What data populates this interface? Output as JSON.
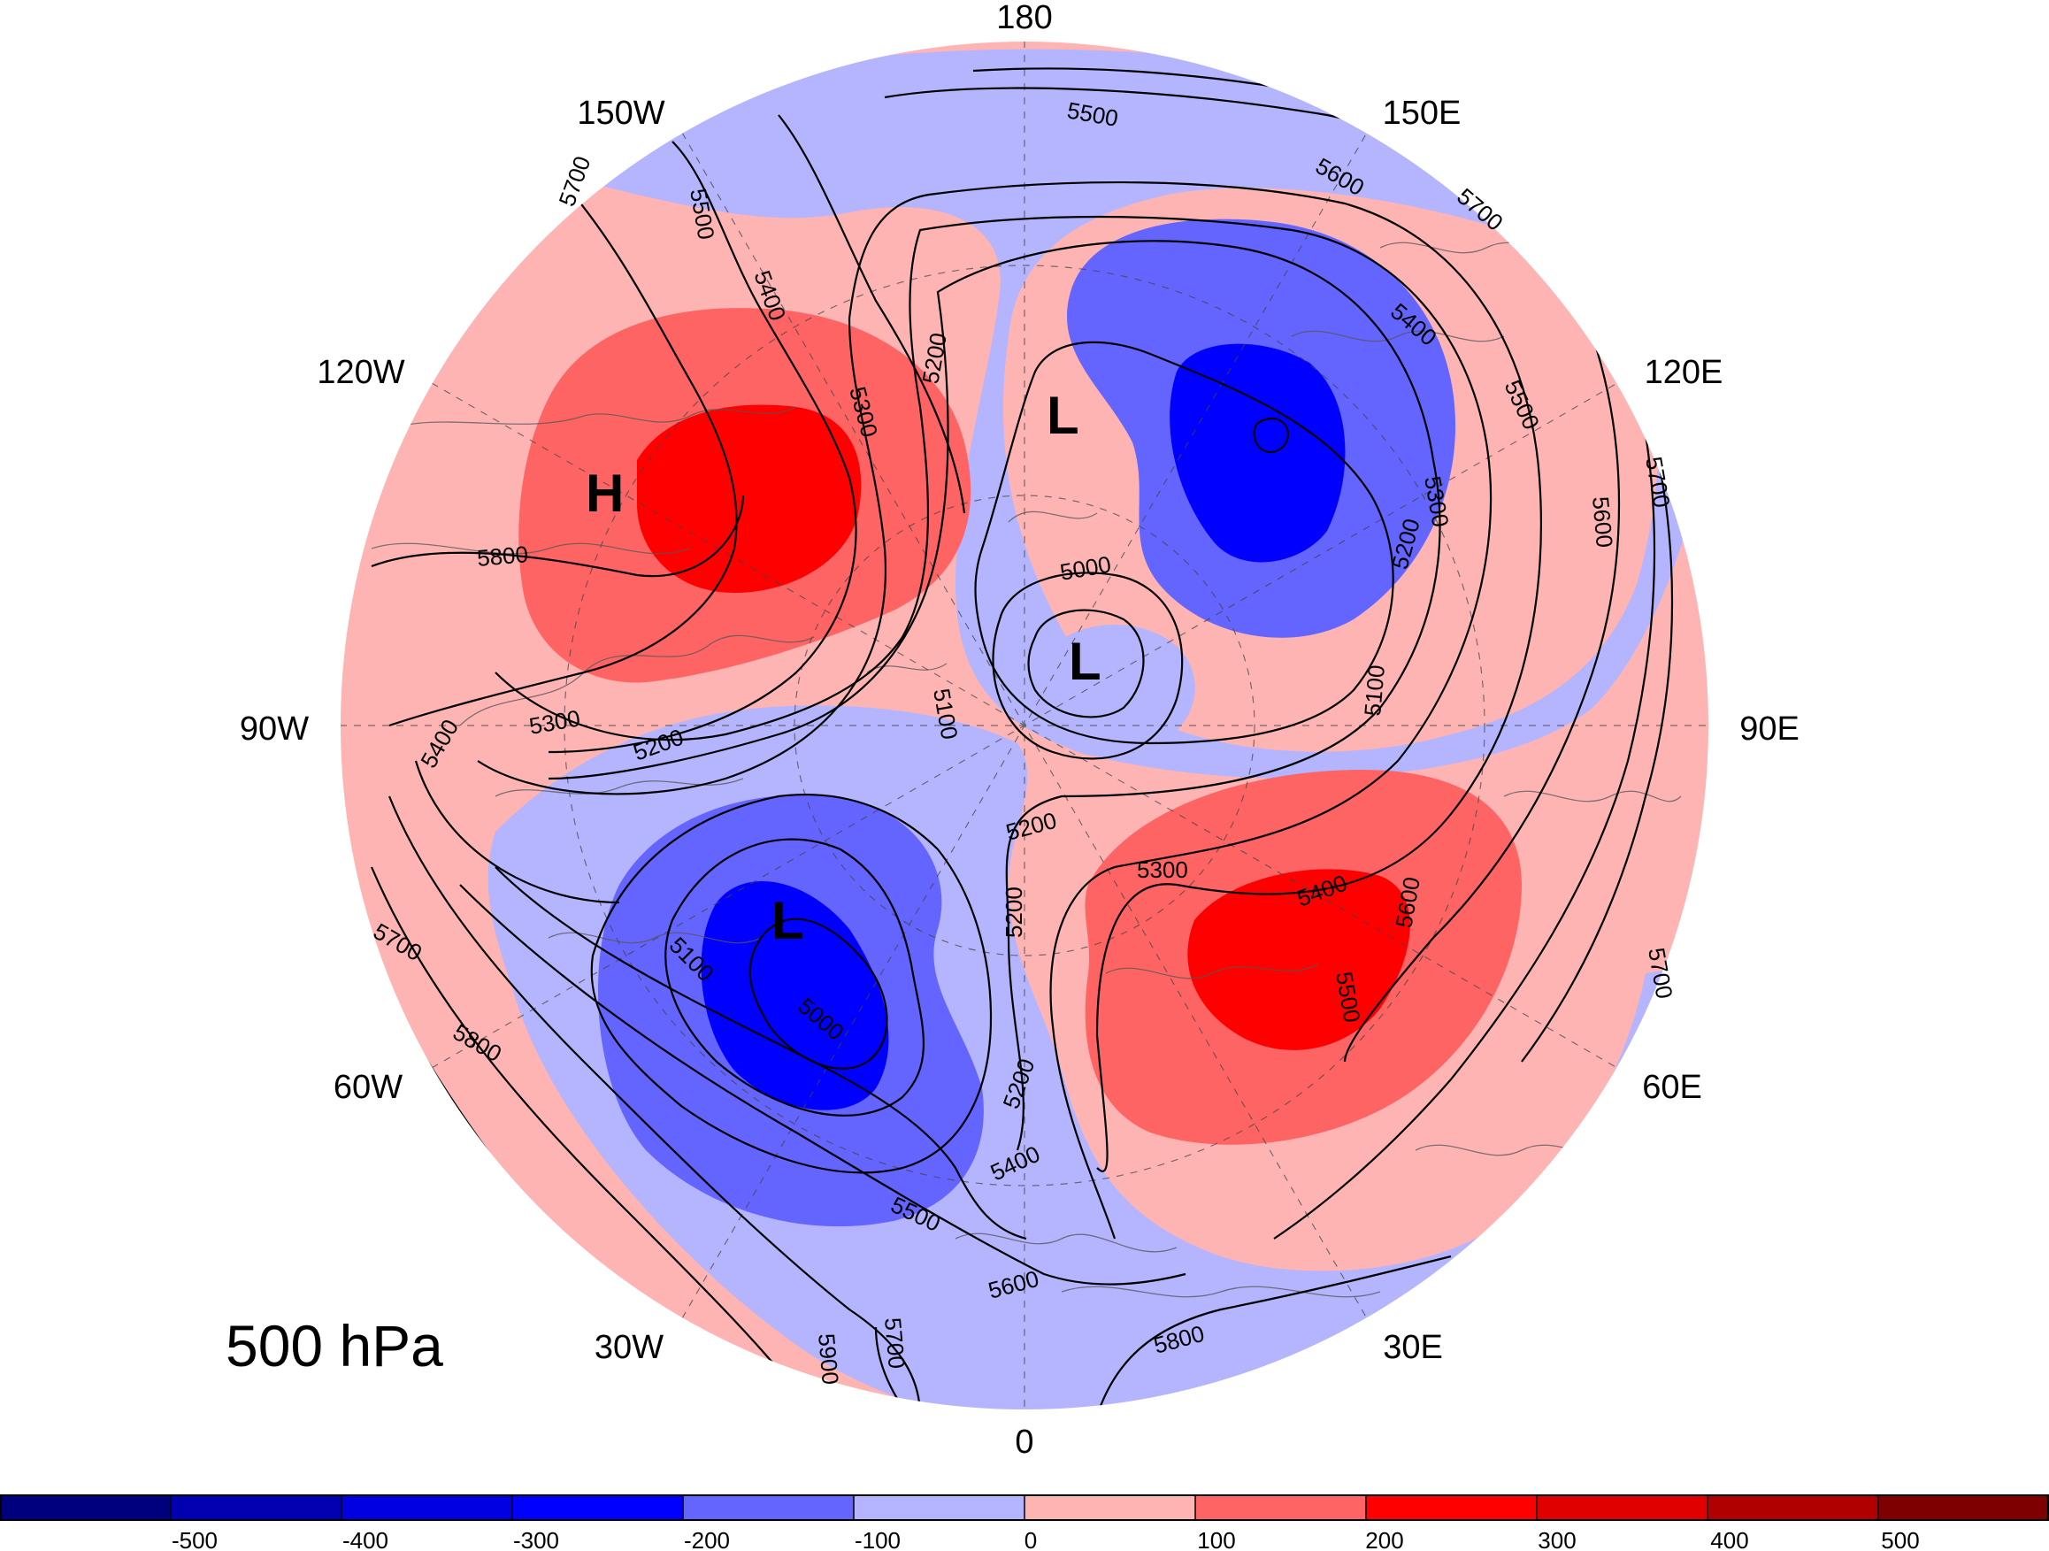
{
  "map": {
    "level_label": "500 hPa",
    "longitude_labels": [
      "180",
      "150E",
      "120E",
      "90E",
      "60E",
      "30E",
      "0",
      "30W",
      "60W",
      "90W",
      "120W",
      "150W"
    ],
    "pressure_centers": [
      "H",
      "L",
      "L",
      "L"
    ],
    "contour_labels": [
      "5000",
      "5000",
      "5100",
      "5100",
      "5100",
      "5200",
      "5200",
      "5200",
      "5200",
      "5200",
      "5200",
      "5300",
      "5300",
      "5300",
      "5300",
      "5400",
      "5400",
      "5400",
      "5400",
      "5400",
      "5500",
      "5500",
      "5500",
      "5500",
      "5500",
      "5600",
      "5600",
      "5600",
      "5600",
      "5700",
      "5700",
      "5700",
      "5700",
      "5700",
      "5700",
      "5800",
      "5800",
      "5800",
      "5900"
    ],
    "colors": {
      "neg_500": "#00007f",
      "neg_400": "#0000b0",
      "neg_300": "#0000ff",
      "neg_200": "#6464ff",
      "neg_100": "#b4b4ff",
      "pos_0": "#ffb4b4",
      "pos_100": "#ff6464",
      "pos_200": "#ff0000",
      "pos_300": "#cc0000",
      "pos_400": "#a00000",
      "pos_500": "#7f0000"
    }
  },
  "colorbar": {
    "labels": [
      "-500",
      "-400",
      "-300",
      "-200",
      "-100",
      "0",
      "100",
      "200",
      "300",
      "400",
      "500"
    ]
  }
}
